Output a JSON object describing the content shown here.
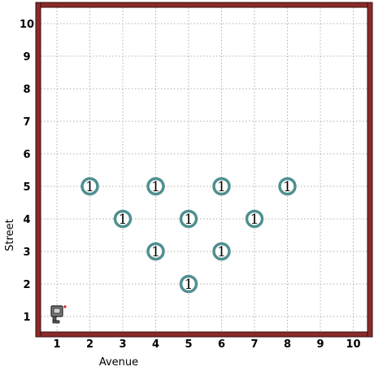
{
  "world": {
    "avenues": 10,
    "streets": 10,
    "x_axis_label": "Avenue",
    "y_axis_label": "Street",
    "x_ticks": [
      "1",
      "2",
      "3",
      "4",
      "5",
      "6",
      "7",
      "8",
      "9",
      "10"
    ],
    "y_ticks": [
      "1",
      "2",
      "3",
      "4",
      "5",
      "6",
      "7",
      "8",
      "9",
      "10"
    ],
    "wall_color": "#8b2a2a",
    "grid_color": "#b0b0b0",
    "beeper_ring_color": "#4f8f8f"
  },
  "beepers": [
    {
      "avenue": 2,
      "street": 5,
      "count": "1"
    },
    {
      "avenue": 4,
      "street": 5,
      "count": "1"
    },
    {
      "avenue": 6,
      "street": 5,
      "count": "1"
    },
    {
      "avenue": 8,
      "street": 5,
      "count": "1"
    },
    {
      "avenue": 3,
      "street": 4,
      "count": "1"
    },
    {
      "avenue": 5,
      "street": 4,
      "count": "1"
    },
    {
      "avenue": 7,
      "street": 4,
      "count": "1"
    },
    {
      "avenue": 4,
      "street": 3,
      "count": "1"
    },
    {
      "avenue": 6,
      "street": 3,
      "count": "1"
    },
    {
      "avenue": 5,
      "street": 2,
      "count": "1"
    }
  ],
  "robot": {
    "avenue": 1,
    "street": 1,
    "facing": "east",
    "icon": "robot-icon"
  }
}
